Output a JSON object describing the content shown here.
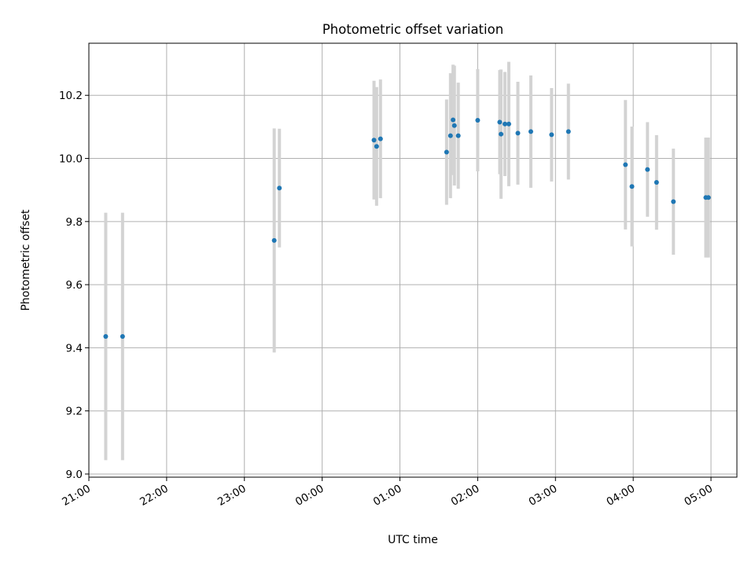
{
  "chart_data": {
    "type": "scatter",
    "title": "Photometric offset variation",
    "xlabel": "UTC time",
    "ylabel": "Photometric offset",
    "xlim": [
      "21:00",
      "05:20"
    ],
    "ylim": [
      8.99,
      10.365
    ],
    "grid": true,
    "legend": "none",
    "x_ticks": [
      "21:00",
      "22:00",
      "23:00",
      "00:00",
      "01:00",
      "02:00",
      "03:00",
      "04:00",
      "05:00"
    ],
    "y_ticks": [
      "9.0",
      "9.2",
      "9.4",
      "9.6",
      "9.8",
      "10.0",
      "10.2"
    ],
    "colors": {
      "point": "#1f77b4",
      "errorbar": "#d3d3d3",
      "grid": "#b0b0b0"
    },
    "points": [
      {
        "time": "21:13",
        "y": 9.436,
        "err": 0.392
      },
      {
        "time": "21:26",
        "y": 9.436,
        "err": 0.392
      },
      {
        "time": "23:23",
        "y": 9.74,
        "err": 0.355
      },
      {
        "time": "23:27",
        "y": 9.906,
        "err": 0.188
      },
      {
        "time": "00:40",
        "y": 10.058,
        "err": 0.188
      },
      {
        "time": "00:42",
        "y": 10.038,
        "err": 0.188
      },
      {
        "time": "00:45",
        "y": 10.062,
        "err": 0.188
      },
      {
        "time": "01:36",
        "y": 10.02,
        "err": 0.167
      },
      {
        "time": "01:39",
        "y": 10.072,
        "err": 0.198
      },
      {
        "time": "01:41",
        "y": 10.122,
        "err": 0.175
      },
      {
        "time": "01:42",
        "y": 10.104,
        "err": 0.19
      },
      {
        "time": "01:45",
        "y": 10.072,
        "err": 0.168
      },
      {
        "time": "02:00",
        "y": 10.121,
        "err": 0.162
      },
      {
        "time": "02:17",
        "y": 10.115,
        "err": 0.165
      },
      {
        "time": "02:18",
        "y": 10.077,
        "err": 0.205
      },
      {
        "time": "02:21",
        "y": 10.109,
        "err": 0.165
      },
      {
        "time": "02:24",
        "y": 10.109,
        "err": 0.197
      },
      {
        "time": "02:31",
        "y": 10.08,
        "err": 0.163
      },
      {
        "time": "02:41",
        "y": 10.085,
        "err": 0.178
      },
      {
        "time": "02:57",
        "y": 10.075,
        "err": 0.148
      },
      {
        "time": "03:10",
        "y": 10.085,
        "err": 0.152
      },
      {
        "time": "03:54",
        "y": 9.98,
        "err": 0.205
      },
      {
        "time": "03:59",
        "y": 9.911,
        "err": 0.19
      },
      {
        "time": "04:11",
        "y": 9.965,
        "err": 0.15
      },
      {
        "time": "04:18",
        "y": 9.924,
        "err": 0.15
      },
      {
        "time": "04:31",
        "y": 9.863,
        "err": 0.168
      },
      {
        "time": "04:56",
        "y": 9.876,
        "err": 0.19
      },
      {
        "time": "04:58",
        "y": 9.876,
        "err": 0.19
      }
    ]
  }
}
